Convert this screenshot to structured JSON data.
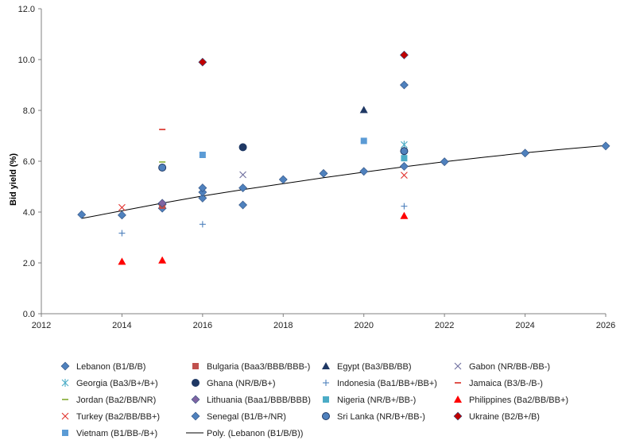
{
  "chart_data": {
    "type": "scatter",
    "title": "",
    "xlabel": "",
    "ylabel": "Bid yield (%)",
    "xlim": [
      2012,
      2026
    ],
    "ylim": [
      0,
      12
    ],
    "x_ticks": [
      "2012",
      "2014",
      "2016",
      "2018",
      "2020",
      "2022",
      "2024",
      "2026"
    ],
    "y_ticks": [
      "0.0",
      "2.0",
      "4.0",
      "6.0",
      "8.0",
      "10.0",
      "12.0"
    ],
    "grid": false,
    "legend_position": "bottom",
    "series": [
      {
        "name": "Lebanon (B1/B/B)",
        "marker": "diamond",
        "color": "#4f81bd",
        "points": [
          [
            2013,
            3.9
          ],
          [
            2014,
            3.88
          ],
          [
            2015,
            4.15
          ],
          [
            2015,
            4.3
          ],
          [
            2016,
            4.55
          ],
          [
            2016,
            4.78
          ],
          [
            2016,
            4.95
          ],
          [
            2017,
            4.28
          ],
          [
            2017,
            4.95
          ],
          [
            2018,
            5.28
          ],
          [
            2019,
            5.52
          ],
          [
            2020,
            5.6
          ],
          [
            2021,
            5.8
          ],
          [
            2022,
            5.98
          ],
          [
            2024,
            6.32
          ],
          [
            2026,
            6.6
          ]
        ]
      },
      {
        "name": "Bulgaria (Baa3/BBB/BBB-)",
        "marker": "square",
        "color": "#c0504d",
        "points": [
          [
            2015,
            4.25
          ]
        ]
      },
      {
        "name": "Egypt (Ba3/BB/BB)",
        "marker": "triangle",
        "color": "#1f3864",
        "points": [
          [
            2020,
            8.02
          ]
        ]
      },
      {
        "name": "Gabon (NR/BB-/BB-)",
        "marker": "x",
        "color": "#6e6e9e",
        "points": [
          [
            2017,
            5.47
          ]
        ]
      },
      {
        "name": "Georgia (Ba3/B+/B+)",
        "marker": "star",
        "color": "#4bacc6",
        "points": [
          [
            2021,
            6.65
          ]
        ]
      },
      {
        "name": "Ghana (NR/B/B+)",
        "marker": "circle",
        "color": "#1f3864",
        "points": [
          [
            2017,
            6.55
          ]
        ]
      },
      {
        "name": "Indonesia (Ba1/BB+/BB+)",
        "marker": "plus",
        "color": "#4f81bd",
        "points": [
          [
            2014,
            3.17
          ],
          [
            2016,
            3.52
          ],
          [
            2021,
            4.23
          ]
        ]
      },
      {
        "name": "Jamaica (B3/B-/B-)",
        "marker": "dash",
        "color": "#e0534c",
        "points": [
          [
            2015,
            7.25
          ]
        ]
      },
      {
        "name": "Jordan (Ba2/BB/NR)",
        "marker": "dash",
        "color": "#9bbb59",
        "points": [
          [
            2015,
            5.97
          ]
        ]
      },
      {
        "name": "Lithuania (Baa1/BBB/BBB)",
        "marker": "diamond",
        "color": "#8064a2",
        "points": [
          [
            2015,
            4.35
          ]
        ]
      },
      {
        "name": "Nigeria (NR/B+/BB-)",
        "marker": "square",
        "color": "#4bacc6",
        "points": [
          [
            2021,
            6.12
          ]
        ]
      },
      {
        "name": "Philippines (Ba2/BB/BB+)",
        "marker": "triangle",
        "color": "#ff0000",
        "points": [
          [
            2014,
            2.05
          ],
          [
            2015,
            2.1
          ],
          [
            2021,
            3.85
          ]
        ]
      },
      {
        "name": "Turkey (Ba2/BB/BB+)",
        "marker": "x",
        "color": "#e0302c",
        "points": [
          [
            2014,
            4.18
          ],
          [
            2021,
            5.45
          ]
        ]
      },
      {
        "name": "Senegal (B1/B+/NR)",
        "marker": "diamond",
        "color": "#4f81bd",
        "points": [
          [
            2021,
            9.0
          ]
        ]
      },
      {
        "name": "Sri Lanka (NR/B+/BB-)",
        "marker": "circle",
        "color": "#4f81bd",
        "points": [
          [
            2015,
            5.75
          ],
          [
            2021,
            6.4
          ]
        ]
      },
      {
        "name": "Ukraine (B2/B+/B)",
        "marker": "diamond",
        "color": "#c00000",
        "points": [
          [
            2016,
            9.9
          ],
          [
            2021,
            10.18
          ]
        ]
      },
      {
        "name": "Vietnam (B1/BB-/B+)",
        "marker": "square",
        "color": "#5b9bd5",
        "points": [
          [
            2016,
            6.25
          ],
          [
            2020,
            6.8
          ]
        ]
      }
    ],
    "trendline": {
      "name": "Poly. (Lebanon (B1/B/B))",
      "color": "#000000",
      "points": [
        [
          2013,
          3.75
        ],
        [
          2014,
          4.05
        ],
        [
          2015,
          4.35
        ],
        [
          2016,
          4.63
        ],
        [
          2017,
          4.88
        ],
        [
          2018,
          5.12
        ],
        [
          2019,
          5.35
        ],
        [
          2020,
          5.57
        ],
        [
          2021,
          5.78
        ],
        [
          2022,
          5.98
        ],
        [
          2023,
          6.16
        ],
        [
          2024,
          6.33
        ],
        [
          2025,
          6.48
        ],
        [
          2026,
          6.62
        ]
      ]
    }
  }
}
